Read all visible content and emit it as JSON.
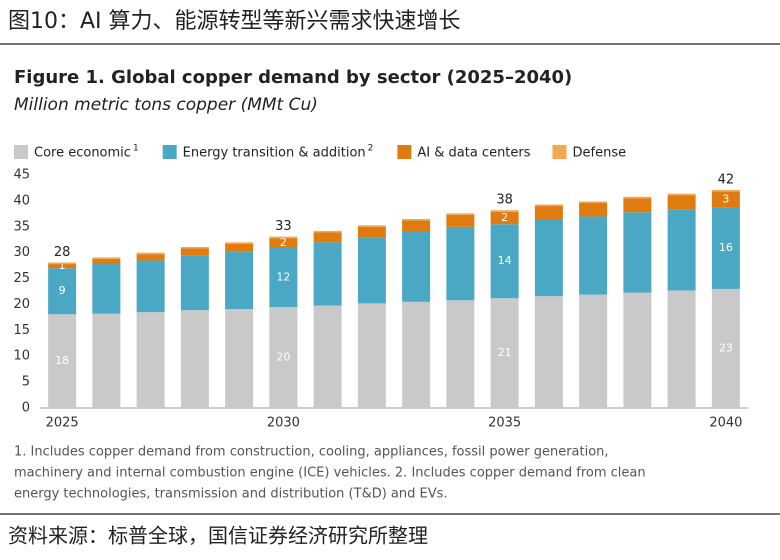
{
  "header": "图10：AI 算力、能源转型等新兴需求快速增长",
  "chart_data": {
    "type": "stacked_bar",
    "title": "Figure 1. Global copper demand by sector (2025–2040)",
    "subtitle": "Million metric tons copper (MMt Cu)",
    "categories": [
      "2025",
      null,
      null,
      null,
      null,
      "2030",
      null,
      null,
      null,
      null,
      "2035",
      null,
      null,
      null,
      null,
      "2040"
    ],
    "series": [
      {
        "name": "Core economic",
        "note": "1",
        "color": "#c9c9c9",
        "values": [
          18.1,
          18.2,
          18.5,
          18.9,
          19.1,
          19.5,
          19.8,
          20.2,
          20.5,
          20.8,
          21.2,
          21.6,
          21.9,
          22.3,
          22.7,
          23.0
        ],
        "value_labels": [
          "18",
          null,
          null,
          null,
          null,
          "20",
          null,
          null,
          null,
          null,
          "21",
          null,
          null,
          null,
          null,
          "23"
        ]
      },
      {
        "name": "Energy transition & addition",
        "note": "2",
        "color": "#4aa8c4",
        "values": [
          8.9,
          9.6,
          10.0,
          10.6,
          11.1,
          11.5,
          12.2,
          12.8,
          13.5,
          14.2,
          14.3,
          14.9,
          15.1,
          15.5,
          15.6,
          15.8
        ],
        "value_labels": [
          "9",
          null,
          null,
          null,
          null,
          "12",
          null,
          null,
          null,
          null,
          "14",
          null,
          null,
          null,
          null,
          "16"
        ]
      },
      {
        "name": "AI & data centers",
        "color": "#e07b10",
        "values": [
          0.8,
          1.0,
          1.2,
          1.3,
          1.5,
          1.8,
          1.9,
          2.0,
          2.2,
          2.3,
          2.4,
          2.5,
          2.6,
          2.7,
          2.8,
          3.0
        ],
        "value_labels": [
          "1",
          null,
          null,
          null,
          null,
          "2",
          null,
          null,
          null,
          null,
          "2",
          null,
          null,
          null,
          null,
          "3"
        ]
      },
      {
        "name": "Defense",
        "color": "#f2a850",
        "values": [
          0.3,
          0.3,
          0.3,
          0.3,
          0.3,
          0.3,
          0.3,
          0.3,
          0.3,
          0.3,
          0.3,
          0.3,
          0.3,
          0.3,
          0.3,
          0.3
        ]
      }
    ],
    "totals": [
      28,
      null,
      null,
      null,
      null,
      33,
      null,
      null,
      null,
      null,
      38,
      null,
      null,
      null,
      null,
      42
    ],
    "ylim": [
      0,
      45
    ],
    "yticks": [
      0,
      5,
      10,
      15,
      20,
      25,
      30,
      35,
      40,
      45
    ],
    "grid": false
  },
  "footnotes": [
    "1. Includes copper demand from construction, cooling, appliances, fossil power generation,",
    "machinery and internal combustion engine (ICE) vehicles. 2. Includes copper demand from clean",
    "energy technologies, transmission and distribution (T&D) and EVs."
  ],
  "source": "资料来源：标普全球，国信证券经济研究所整理"
}
